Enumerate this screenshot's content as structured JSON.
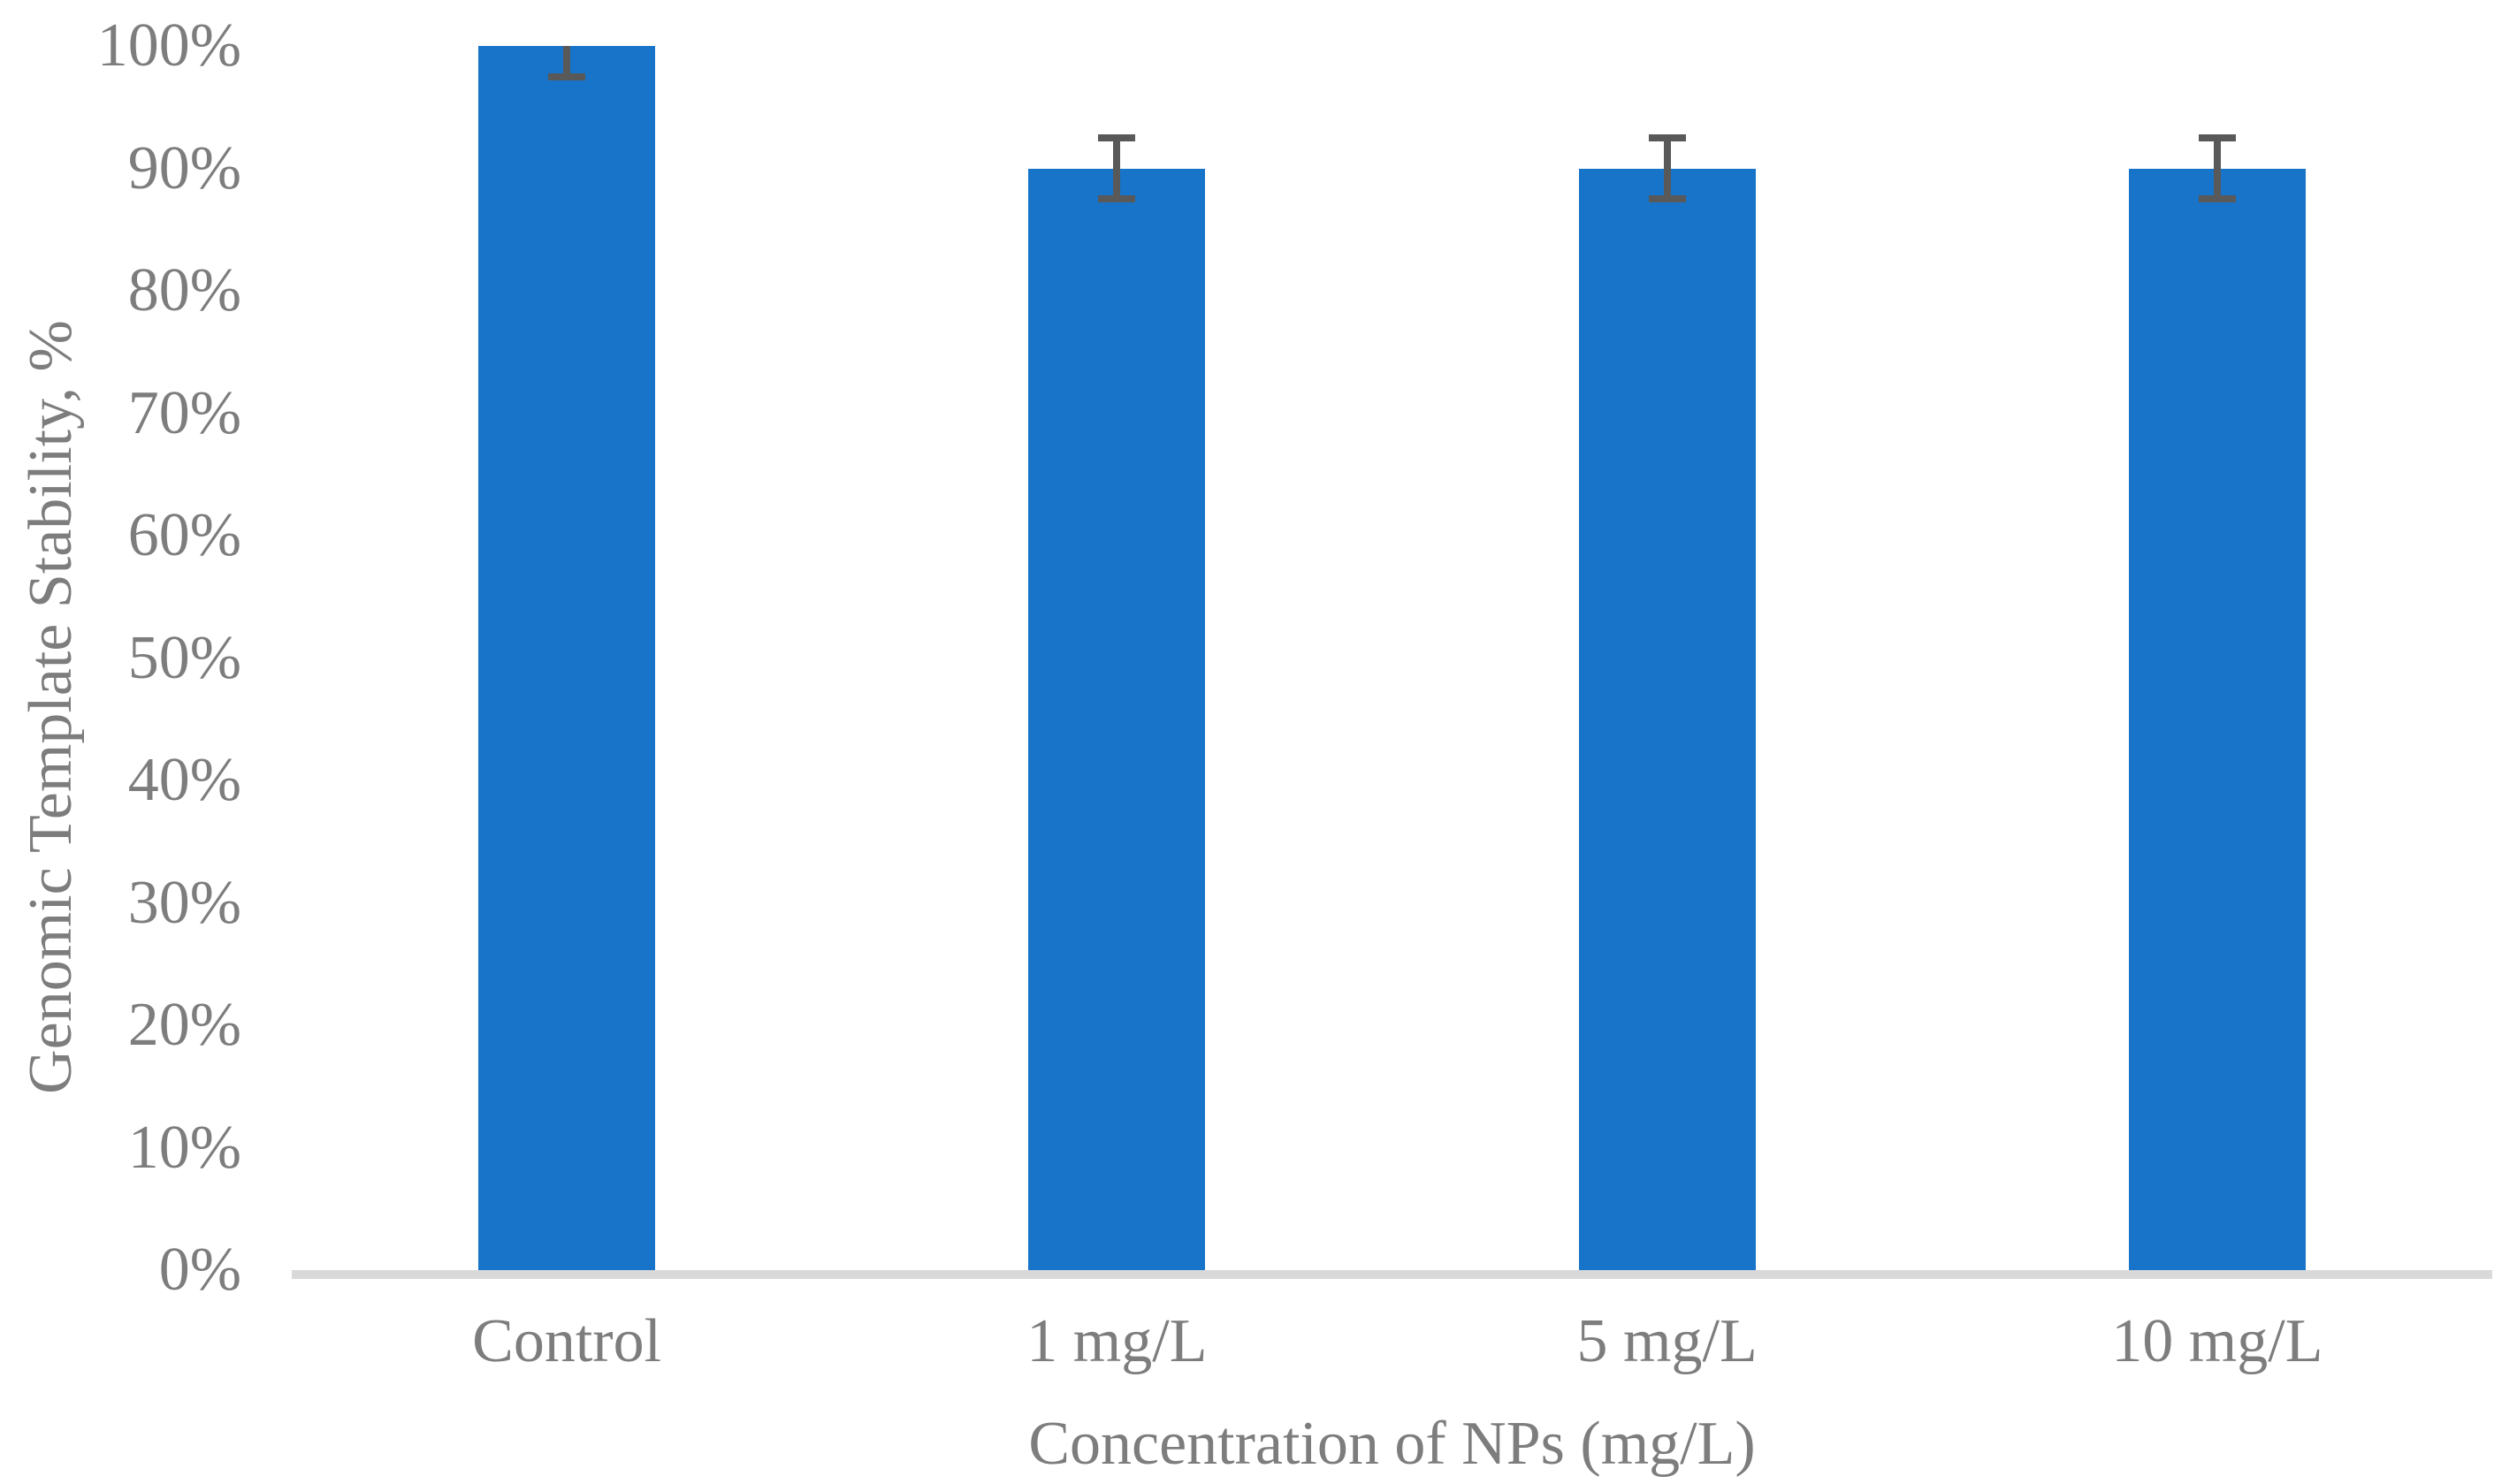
{
  "chart_data": {
    "type": "bar",
    "title": "",
    "categories": [
      "Control",
      "1 mg/L",
      "5 mg/L",
      "10 mg/L"
    ],
    "series": [
      {
        "name": "Genomic Template Stability",
        "values": [
          100,
          90,
          90,
          90
        ],
        "errors": [
          2.5,
          2.5,
          2.5,
          2.5
        ]
      }
    ],
    "xlabel": "Concentration of NPs (mg/L)",
    "ylabel": "Genomic Template Stability, %",
    "ylim": [
      0,
      100
    ],
    "ytick_step": 10,
    "ytick_labels": [
      "0%",
      "10%",
      "20%",
      "30%",
      "40%",
      "50%",
      "60%",
      "70%",
      "80%",
      "90%",
      "100%"
    ],
    "grid": false,
    "legend": "none",
    "error_bars": "plus-minus, upper whisker of Control clipped at 100%",
    "colors": {
      "bar": "#1874C9",
      "error_bar": "#595959",
      "axis_line": "#D9D9D9",
      "text": "#7D7D7D",
      "background": "#FFFFFF"
    }
  }
}
